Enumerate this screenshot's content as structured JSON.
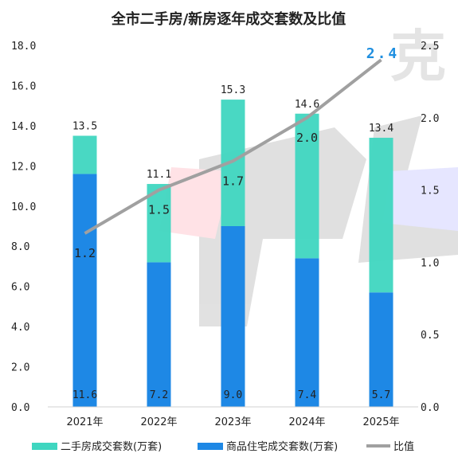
{
  "chart_data": {
    "type": "bar",
    "title": "全市二手房/新房逐年成交套数及比值",
    "categories": [
      "2021年",
      "2022年",
      "2023年",
      "2024年",
      "2025年"
    ],
    "series": [
      {
        "name": "商品住宅成交套数(万套)",
        "kind": "bar",
        "axis": "left",
        "values": [
          11.6,
          7.2,
          9.0,
          7.4,
          5.7
        ],
        "labels": [
          "11.6",
          "7.2",
          "9.0",
          "7.4",
          "5.7"
        ]
      },
      {
        "name": "二手房成交套数(万套)",
        "kind": "bar",
        "axis": "left",
        "values": [
          1.9,
          3.9,
          6.3,
          7.2,
          7.7
        ]
      },
      {
        "name": "比值",
        "kind": "line",
        "axis": "right",
        "values": [
          1.2,
          1.5,
          1.7,
          2.0,
          2.4
        ],
        "labels": [
          "1.2",
          "1.5",
          "1.7",
          "2.0",
          "2.4"
        ]
      }
    ],
    "totals": [
      13.5,
      11.1,
      15.3,
      14.6,
      13.4
    ],
    "total_labels": [
      "13.5",
      "11.1",
      "15.3",
      "14.6",
      "13.4"
    ],
    "ylim": [
      0,
      18
    ],
    "y_ticks": [
      "0.0",
      "2.0",
      "4.0",
      "6.0",
      "8.0",
      "10.0",
      "12.0",
      "14.0",
      "16.0",
      "18.0"
    ],
    "y2lim": [
      0,
      2.5
    ],
    "y2_ticks": [
      "0.0",
      "0.5",
      "1.0",
      "1.5",
      "2.0",
      "2.5"
    ],
    "grid": false,
    "legend_position": "bottom",
    "colors": {
      "new": "#1e88e5",
      "second": "#3fd6c0",
      "ratio": "#a0a0a0",
      "highlight": "#1f8fe0"
    },
    "legend": [
      "二手房成交套数(万套)",
      "商品住宅成交套数(万套)",
      "比值"
    ]
  }
}
